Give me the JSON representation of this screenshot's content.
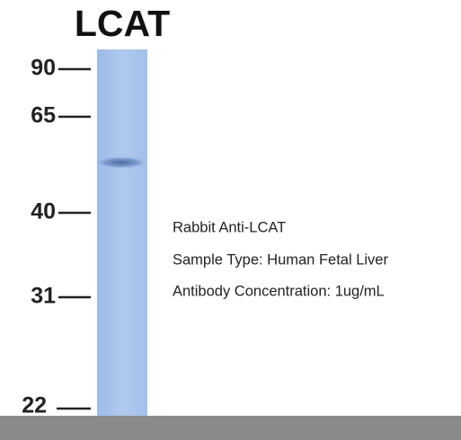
{
  "title": "LCAT",
  "markers": [
    "90",
    "65",
    "40",
    "31",
    "22"
  ],
  "annotations": [
    "Rabbit Anti-LCAT",
    "Sample Type: Human Fetal Liver",
    "Antibody Concentration: 1ug/mL"
  ]
}
